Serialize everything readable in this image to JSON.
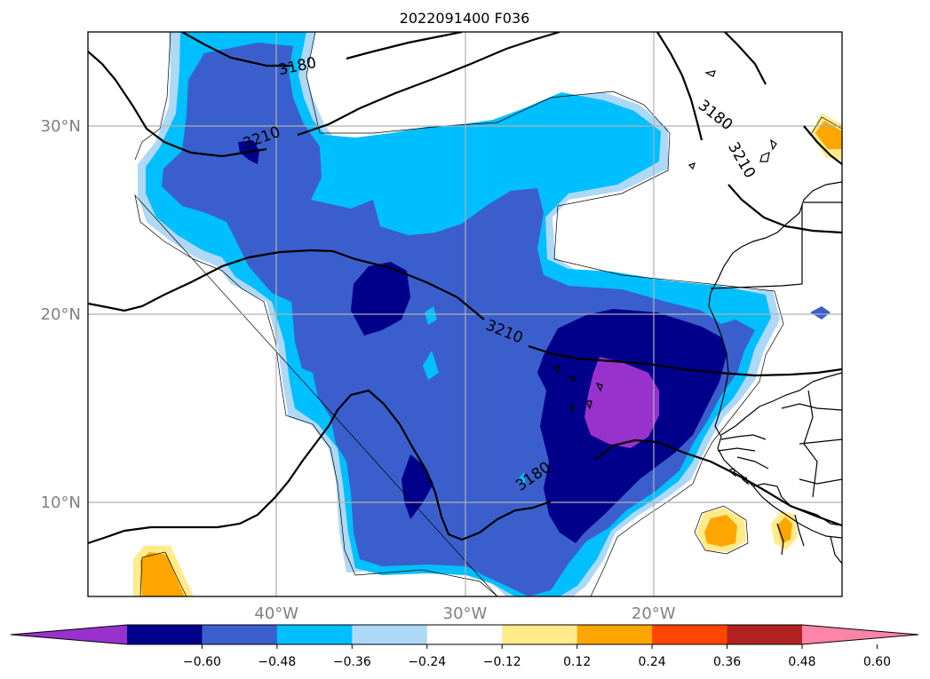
{
  "title": "2022091400 F036",
  "map": {
    "lon_range": [
      -50,
      -10
    ],
    "lat_range": [
      5,
      35
    ],
    "lat_ticks": [
      {
        "lat": 30,
        "label": "30°N"
      },
      {
        "lat": 20,
        "label": "20°N"
      },
      {
        "lat": 10,
        "label": "10°N"
      }
    ],
    "lon_ticks": [
      {
        "lon": -40,
        "label": "40°W"
      },
      {
        "lon": -30,
        "label": "30°W"
      },
      {
        "lon": -20,
        "label": "20°W"
      }
    ],
    "tick_label_color": "#808080",
    "gridline_color": "#b0b0b0",
    "contour_labels": [
      {
        "text": "3180",
        "lon": -38.9,
        "lat": 33.2,
        "angle": -12
      },
      {
        "text": "3210",
        "lon": -40.8,
        "lat": 29.4,
        "angle": -20
      },
      {
        "text": "3210",
        "lon": -27.9,
        "lat": 19.1,
        "angle": 22
      },
      {
        "text": "3180",
        "lon": -26.4,
        "lat": 11.4,
        "angle": -35
      },
      {
        "text": "3180",
        "lon": -16.7,
        "lat": 30.6,
        "angle": 38
      },
      {
        "text": "3210",
        "lon": -15.3,
        "lat": 28.2,
        "angle": 60
      }
    ]
  },
  "colorbar": {
    "ticks": [
      "−0.60",
      "−0.48",
      "−0.36",
      "−0.24",
      "−0.12",
      "0.12",
      "0.24",
      "0.36",
      "0.48",
      "0.60"
    ],
    "colors": [
      "#9932cc",
      "#00008b",
      "#3a5fcd",
      "#00bfff",
      "#add8f6",
      "#ffffff",
      "#ffeb8a",
      "#ffa500",
      "#ff4500",
      "#b22222",
      "#ff85a8"
    ],
    "extend": "both"
  }
}
